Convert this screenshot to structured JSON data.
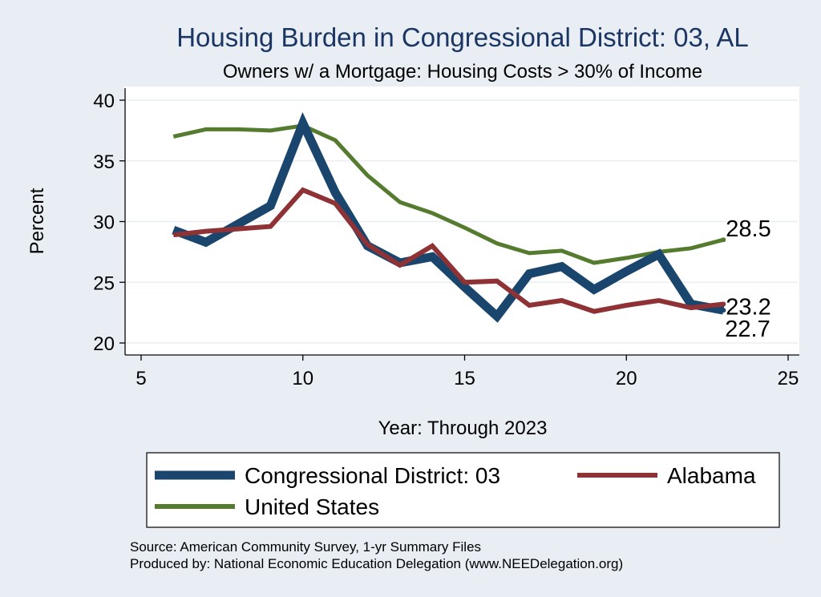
{
  "chart_data": {
    "type": "line",
    "title": "Housing Burden in Congressional District:  03, AL",
    "subtitle": "Owners w/ a Mortgage: Housing Costs > 30% of Income",
    "xlabel": "Year: Through 2023",
    "ylabel": "Percent",
    "xlim": [
      5,
      25
    ],
    "ylim": [
      20,
      40
    ],
    "xticks": [
      5,
      10,
      15,
      20,
      25
    ],
    "yticks": [
      20,
      25,
      30,
      35,
      40
    ],
    "grid": true,
    "legend_position": "bottom",
    "series": [
      {
        "name": "Congressional District:  03",
        "color": "#1a466e",
        "x": [
          6,
          7,
          8,
          9,
          10,
          11,
          12,
          13,
          14,
          15,
          16,
          17,
          18,
          19,
          20,
          21,
          22,
          23
        ],
        "values": [
          29.3,
          28.3,
          29.8,
          31.3,
          38.1,
          32.4,
          28.0,
          26.6,
          27.1,
          24.6,
          22.2,
          25.7,
          26.3,
          24.4,
          25.9,
          27.3,
          23.2,
          22.7
        ],
        "end_label": "22.7"
      },
      {
        "name": "Alabama",
        "color": "#8e3235",
        "x": [
          6,
          7,
          8,
          9,
          10,
          11,
          12,
          13,
          14,
          15,
          16,
          17,
          18,
          19,
          20,
          21,
          22,
          23
        ],
        "values": [
          28.9,
          29.2,
          29.4,
          29.6,
          32.6,
          31.5,
          28.1,
          26.4,
          28.0,
          25.0,
          25.1,
          23.1,
          23.5,
          22.6,
          23.1,
          23.5,
          22.9,
          23.2
        ],
        "end_label": "23.2"
      },
      {
        "name": "United States",
        "color": "#557b2f",
        "x": [
          6,
          7,
          8,
          9,
          10,
          11,
          12,
          13,
          14,
          15,
          16,
          17,
          18,
          19,
          20,
          21,
          22,
          23
        ],
        "values": [
          37.0,
          37.6,
          37.6,
          37.5,
          37.9,
          36.7,
          33.8,
          31.6,
          30.7,
          29.5,
          28.2,
          27.4,
          27.6,
          26.6,
          27.0,
          27.5,
          27.8,
          28.5
        ],
        "end_label": "28.5"
      }
    ]
  },
  "notes": {
    "source": "Source: American Community Survey, 1-yr Summary Files",
    "producer": "Produced by: National Economic Education Delegation (www.NEEDelegation.org)"
  }
}
